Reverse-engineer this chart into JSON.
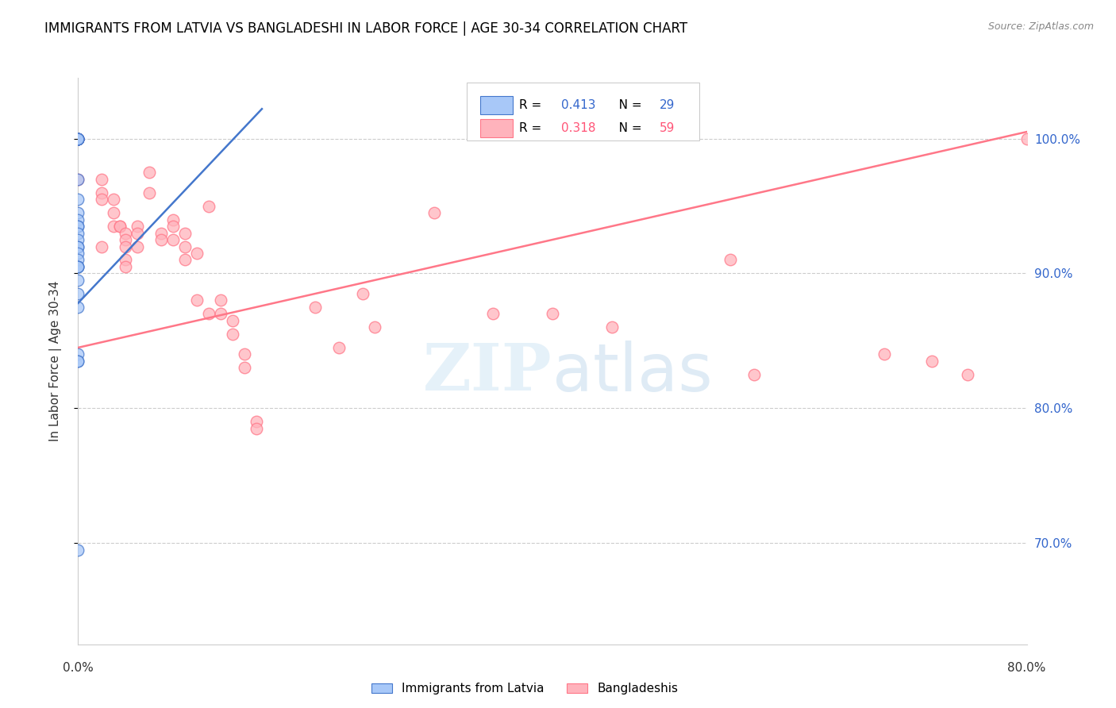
{
  "title": "IMMIGRANTS FROM LATVIA VS BANGLADESHI IN LABOR FORCE | AGE 30-34 CORRELATION CHART",
  "source": "Source: ZipAtlas.com",
  "ylabel": "In Labor Force | Age 30-34",
  "ytick_values": [
    0.7,
    0.8,
    0.9,
    1.0
  ],
  "xlim": [
    0.0,
    0.8
  ],
  "ylim": [
    0.625,
    1.045
  ],
  "legend_r_blue": "0.413",
  "legend_n_blue": "29",
  "legend_r_pink": "0.318",
  "legend_n_pink": "59",
  "blue_fill": "#A8C8F8",
  "pink_fill": "#FFB3BC",
  "blue_edge": "#4477CC",
  "pink_edge": "#FF7788",
  "blue_line": "#4477CC",
  "pink_line": "#FF7788",
  "text_blue": "#3366CC",
  "text_pink": "#FF5577",
  "blue_scatter_x": [
    0.0,
    0.0,
    0.0,
    0.0,
    0.0,
    0.0,
    0.0,
    0.0,
    0.0,
    0.0,
    0.0,
    0.0,
    0.0,
    0.0,
    0.0,
    0.0,
    0.0,
    0.0,
    0.0,
    0.0,
    0.0,
    0.0,
    0.0,
    0.0,
    0.0,
    0.0,
    0.0,
    0.0,
    0.0
  ],
  "blue_scatter_y": [
    1.0,
    1.0,
    1.0,
    1.0,
    1.0,
    1.0,
    1.0,
    0.97,
    0.955,
    0.945,
    0.94,
    0.935,
    0.935,
    0.93,
    0.925,
    0.92,
    0.92,
    0.915,
    0.91,
    0.905,
    0.905,
    0.905,
    0.895,
    0.885,
    0.875,
    0.84,
    0.835,
    0.835,
    0.695
  ],
  "pink_scatter_x": [
    0.0,
    0.0,
    0.0,
    0.0,
    0.0,
    0.0,
    0.02,
    0.02,
    0.02,
    0.02,
    0.03,
    0.03,
    0.03,
    0.035,
    0.035,
    0.04,
    0.04,
    0.04,
    0.04,
    0.04,
    0.05,
    0.05,
    0.05,
    0.06,
    0.06,
    0.07,
    0.07,
    0.08,
    0.08,
    0.08,
    0.09,
    0.09,
    0.09,
    0.1,
    0.1,
    0.11,
    0.11,
    0.12,
    0.12,
    0.13,
    0.13,
    0.14,
    0.14,
    0.15,
    0.15,
    0.2,
    0.22,
    0.24,
    0.25,
    0.3,
    0.35,
    0.4,
    0.45,
    0.55,
    0.57,
    0.68,
    0.72,
    0.75,
    0.8
  ],
  "pink_scatter_y": [
    1.0,
    1.0,
    1.0,
    1.0,
    1.0,
    0.97,
    0.97,
    0.96,
    0.955,
    0.92,
    0.955,
    0.945,
    0.935,
    0.935,
    0.935,
    0.93,
    0.925,
    0.92,
    0.91,
    0.905,
    0.935,
    0.93,
    0.92,
    0.975,
    0.96,
    0.93,
    0.925,
    0.94,
    0.935,
    0.925,
    0.93,
    0.92,
    0.91,
    0.915,
    0.88,
    0.95,
    0.87,
    0.88,
    0.87,
    0.865,
    0.855,
    0.84,
    0.83,
    0.79,
    0.785,
    0.875,
    0.845,
    0.885,
    0.86,
    0.945,
    0.87,
    0.87,
    0.86,
    0.91,
    0.825,
    0.84,
    0.835,
    0.825,
    1.0
  ],
  "blue_trendline_x": [
    0.0,
    0.155
  ],
  "blue_trendline_y": [
    0.878,
    1.022
  ],
  "pink_trendline_x": [
    0.0,
    0.8
  ],
  "pink_trendline_y": [
    0.845,
    1.005
  ]
}
